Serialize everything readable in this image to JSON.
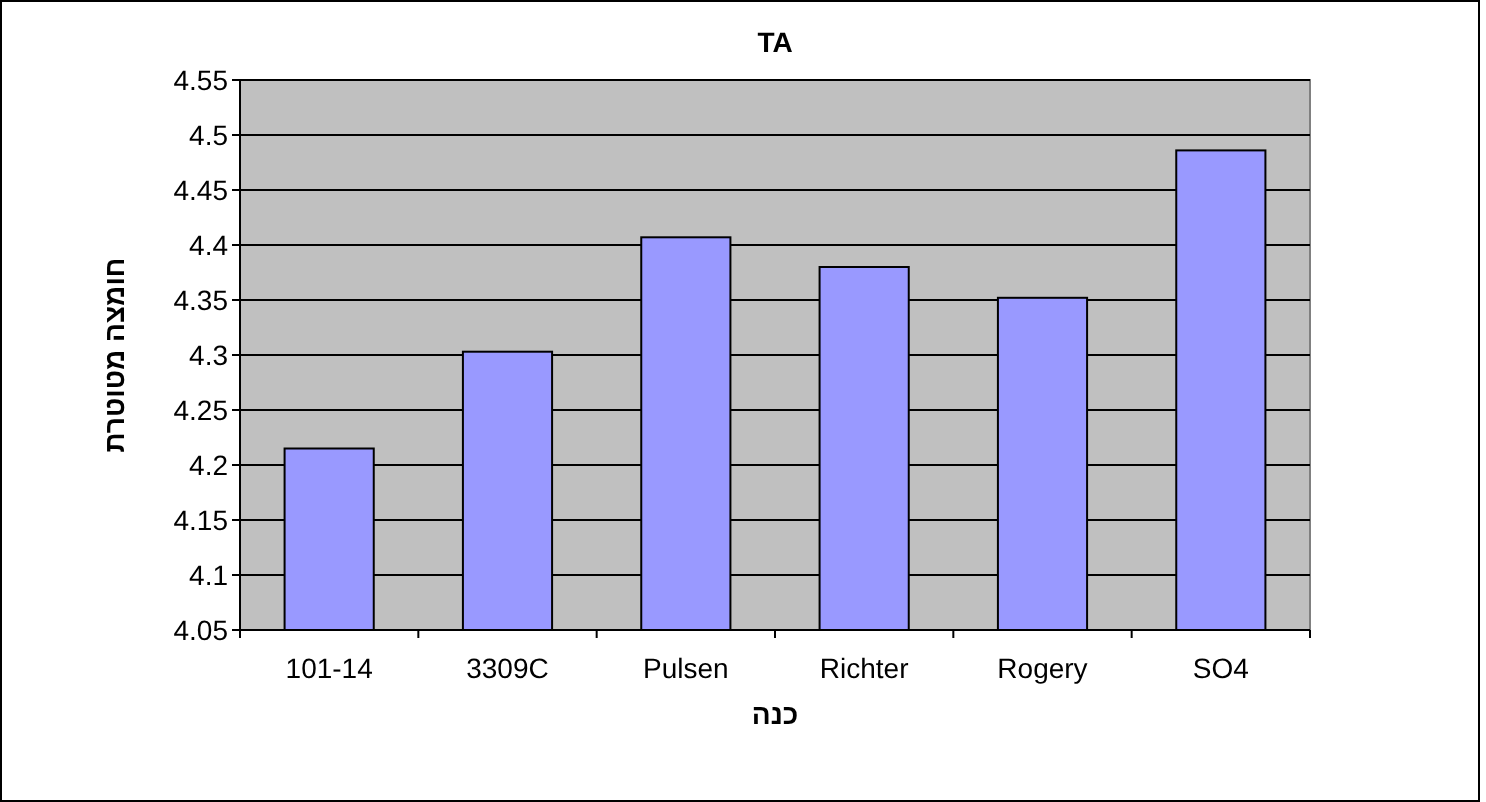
{
  "chart_data": {
    "type": "bar",
    "title": "TA",
    "xlabel": "כנה",
    "ylabel": "חומצה מטוטרת",
    "categories": [
      "101-14",
      "3309C",
      "Pulsen",
      "Richter",
      "Rogery",
      "SO4"
    ],
    "values": [
      4.215,
      4.303,
      4.407,
      4.38,
      4.352,
      4.486
    ],
    "color": "#9999ff",
    "ylim": [
      4.05,
      4.55
    ],
    "yticks": [
      4.05,
      4.1,
      4.15,
      4.2,
      4.25,
      4.3,
      4.35,
      4.4,
      4.45,
      4.5,
      4.55
    ],
    "grid": "y"
  }
}
